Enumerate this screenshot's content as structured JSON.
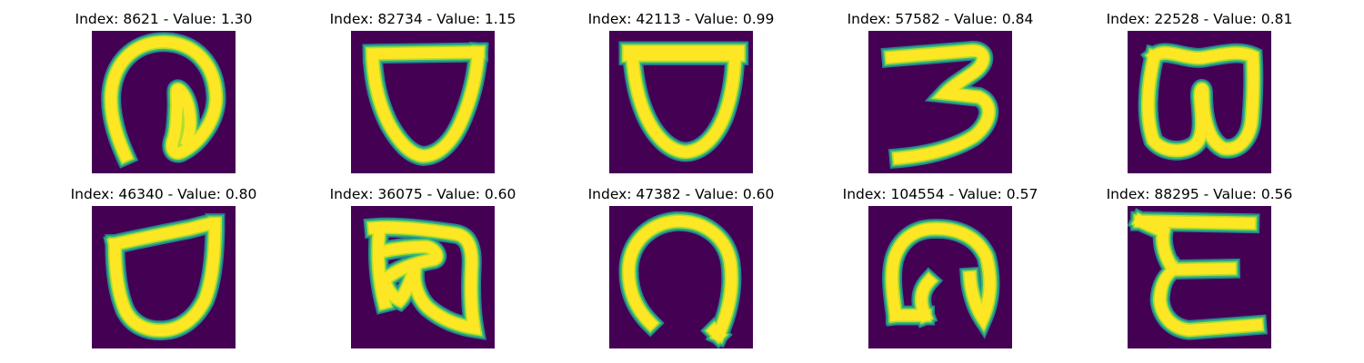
{
  "colors": {
    "background": "#440154",
    "stroke_core": "#fde725",
    "stroke_mid": "#b5de2b",
    "stroke_edge": "#35b779",
    "stroke_fringe": "#26828e"
  },
  "images": [
    {
      "title": "Index: 8621 - Value: 1.30",
      "index": 8621,
      "value": 1.3,
      "glyph": "curl-circle"
    },
    {
      "title": "Index: 82734 - Value: 1.15",
      "index": 82734,
      "value": 1.15,
      "glyph": "shield"
    },
    {
      "title": "Index: 42113 - Value: 0.99",
      "index": 42113,
      "value": 0.99,
      "glyph": "cup"
    },
    {
      "title": "Index: 57582 - Value: 0.84",
      "index": 57582,
      "value": 0.84,
      "glyph": "three"
    },
    {
      "title": "Index: 22528 - Value: 0.81",
      "index": 22528,
      "value": 0.81,
      "glyph": "double-loop"
    },
    {
      "title": "Index: 46340 - Value: 0.80",
      "index": 46340,
      "value": 0.8,
      "glyph": "shield-tilt"
    },
    {
      "title": "Index: 36075 - Value: 0.60",
      "index": 36075,
      "value": 0.6,
      "glyph": "box-squiggle"
    },
    {
      "title": "Index: 47382 - Value: 0.60",
      "index": 47382,
      "value": 0.6,
      "glyph": "arch"
    },
    {
      "title": "Index: 104554 - Value: 0.57",
      "index": 104554,
      "value": 0.57,
      "glyph": "hook-arch"
    },
    {
      "title": "Index: 88295 - Value: 0.56",
      "index": 88295,
      "value": 0.56,
      "glyph": "epsilon"
    }
  ]
}
